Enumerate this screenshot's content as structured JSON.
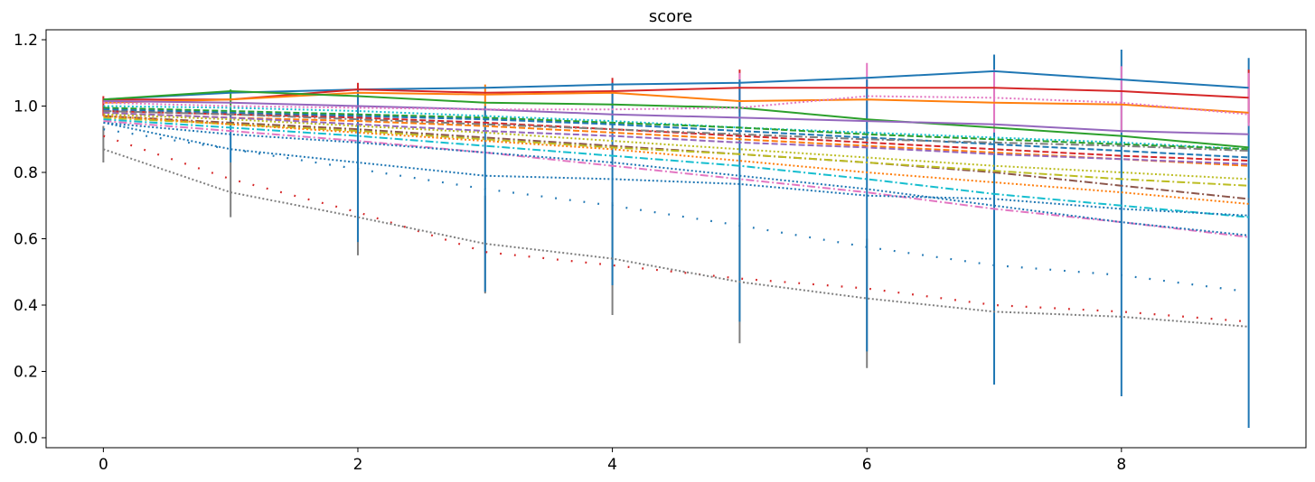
{
  "chart_data": {
    "type": "line",
    "title": "score",
    "xlabel": "",
    "ylabel": "",
    "xlim": [
      -0.45,
      9.45
    ],
    "ylim": [
      -0.03,
      1.23
    ],
    "xticks": [
      0,
      2,
      4,
      6,
      8
    ],
    "yticks": [
      0.0,
      0.2,
      0.4,
      0.6,
      0.8,
      1.0,
      1.2
    ],
    "grid": false,
    "x": [
      0,
      1,
      2,
      3,
      4,
      5,
      6,
      7,
      8,
      9
    ],
    "series": [
      {
        "color": "#1f77b4",
        "style": "solid",
        "values": [
          1.02,
          1.04,
          1.05,
          1.055,
          1.065,
          1.07,
          1.085,
          1.105,
          1.08,
          1.055
        ]
      },
      {
        "color": "#d62728",
        "style": "solid",
        "values": [
          1.02,
          1.02,
          1.05,
          1.04,
          1.045,
          1.055,
          1.055,
          1.055,
          1.045,
          1.025
        ]
      },
      {
        "color": "#ff7f0e",
        "style": "solid",
        "values": [
          1.01,
          1.02,
          1.04,
          1.035,
          1.04,
          1.015,
          1.02,
          1.01,
          1.005,
          0.98
        ]
      },
      {
        "color": "#2ca02c",
        "style": "solid",
        "values": [
          1.02,
          1.045,
          1.03,
          1.01,
          1.005,
          0.995,
          0.96,
          0.935,
          0.91,
          0.875
        ]
      },
      {
        "color": "#9467bd",
        "style": "solid",
        "values": [
          1.015,
          1.01,
          1.0,
          0.99,
          0.975,
          0.965,
          0.955,
          0.945,
          0.925,
          0.915
        ]
      },
      {
        "color": "#e377c2",
        "style": "dotted",
        "values": [
          1.01,
          1.0,
          0.995,
          0.99,
          0.99,
          0.995,
          1.03,
          1.025,
          1.01,
          0.975
        ]
      },
      {
        "color": "#17becf",
        "style": "dotted",
        "values": [
          1.0,
          0.995,
          0.985,
          0.97,
          0.955,
          0.935,
          0.92,
          0.905,
          0.89,
          0.87
        ]
      },
      {
        "color": "#2ca02c",
        "style": "dashed",
        "values": [
          0.995,
          0.985,
          0.975,
          0.965,
          0.95,
          0.935,
          0.915,
          0.9,
          0.885,
          0.87
        ]
      },
      {
        "color": "#1f77b4",
        "style": "dashed",
        "values": [
          0.99,
          0.98,
          0.97,
          0.96,
          0.945,
          0.925,
          0.905,
          0.885,
          0.865,
          0.845
        ]
      },
      {
        "color": "#d62728",
        "style": "dashed",
        "values": [
          0.985,
          0.975,
          0.965,
          0.95,
          0.93,
          0.91,
          0.89,
          0.87,
          0.85,
          0.835
        ]
      },
      {
        "color": "#ff7f0e",
        "style": "dashed",
        "values": [
          0.98,
          0.965,
          0.955,
          0.94,
          0.92,
          0.9,
          0.88,
          0.86,
          0.84,
          0.82
        ]
      },
      {
        "color": "#7f7f7f",
        "style": "dashdot",
        "values": [
          0.985,
          0.975,
          0.96,
          0.945,
          0.93,
          0.915,
          0.9,
          0.89,
          0.88,
          0.865
        ]
      },
      {
        "color": "#9467bd",
        "style": "dashed",
        "values": [
          0.98,
          0.965,
          0.945,
          0.925,
          0.91,
          0.89,
          0.875,
          0.855,
          0.84,
          0.825
        ]
      },
      {
        "color": "#bcbd22",
        "style": "dotted",
        "values": [
          0.975,
          0.96,
          0.94,
          0.92,
          0.895,
          0.87,
          0.845,
          0.82,
          0.8,
          0.78
        ]
      },
      {
        "color": "#8c564b",
        "style": "dashdot",
        "values": [
          0.97,
          0.95,
          0.93,
          0.905,
          0.88,
          0.855,
          0.83,
          0.8,
          0.76,
          0.72
        ]
      },
      {
        "color": "#bcbd22",
        "style": "dashdot",
        "values": [
          0.965,
          0.945,
          0.925,
          0.9,
          0.875,
          0.855,
          0.83,
          0.805,
          0.78,
          0.76
        ]
      },
      {
        "color": "#ff7f0e",
        "style": "dotted",
        "values": [
          0.97,
          0.945,
          0.92,
          0.895,
          0.87,
          0.835,
          0.8,
          0.77,
          0.74,
          0.705
        ]
      },
      {
        "color": "#17becf",
        "style": "dashdot",
        "values": [
          0.96,
          0.935,
          0.91,
          0.88,
          0.85,
          0.82,
          0.78,
          0.735,
          0.7,
          0.665
        ]
      },
      {
        "color": "#e377c2",
        "style": "dashdot",
        "values": [
          0.955,
          0.925,
          0.895,
          0.86,
          0.82,
          0.78,
          0.74,
          0.69,
          0.65,
          0.605
        ]
      },
      {
        "color": "#1f77b4",
        "style": "dotted",
        "values": [
          0.95,
          0.915,
          0.89,
          0.86,
          0.83,
          0.79,
          0.75,
          0.7,
          0.65,
          0.61
        ]
      },
      {
        "color": "#1f77b4",
        "style": "dotted",
        "values": [
          0.95,
          0.87,
          0.83,
          0.79,
          0.78,
          0.765,
          0.73,
          0.72,
          0.69,
          0.67
        ]
      },
      {
        "color": "#1f77b4",
        "style": "sparse",
        "values": [
          0.93,
          0.87,
          0.81,
          0.75,
          0.7,
          0.64,
          0.575,
          0.52,
          0.49,
          0.44
        ]
      },
      {
        "color": "#d62728",
        "style": "sparse",
        "values": [
          0.91,
          0.78,
          0.68,
          0.56,
          0.52,
          0.48,
          0.45,
          0.4,
          0.38,
          0.35
        ]
      },
      {
        "color": "#7f7f7f",
        "style": "dotted",
        "values": [
          0.87,
          0.74,
          0.665,
          0.585,
          0.54,
          0.47,
          0.42,
          0.38,
          0.365,
          0.335
        ]
      }
    ],
    "error_bars": [
      {
        "color": "#7f7f7f",
        "x": 0,
        "low": 0.83,
        "high": 0.94
      },
      {
        "color": "#d62728",
        "x": 0,
        "low": 0.97,
        "high": 1.03
      },
      {
        "color": "#7f7f7f",
        "x": 1,
        "low": 0.665,
        "high": 0.83
      },
      {
        "color": "#2ca02c",
        "x": 1,
        "low": 0.95,
        "high": 1.05
      },
      {
        "color": "#1f77b4",
        "x": 1,
        "low": 0.83,
        "high": 0.99
      },
      {
        "color": "#7f7f7f",
        "x": 2,
        "low": 0.55,
        "high": 0.81
      },
      {
        "color": "#d62728",
        "x": 2,
        "low": 0.96,
        "high": 1.07
      },
      {
        "color": "#1f77b4",
        "x": 2,
        "low": 0.59,
        "high": 1.05
      },
      {
        "color": "#7f7f7f",
        "x": 3,
        "low": 0.435,
        "high": 0.73
      },
      {
        "color": "#ff7f0e",
        "x": 3,
        "low": 0.93,
        "high": 1.065
      },
      {
        "color": "#1f77b4",
        "x": 3,
        "low": 0.44,
        "high": 1.0
      },
      {
        "color": "#7f7f7f",
        "x": 4,
        "low": 0.37,
        "high": 0.71
      },
      {
        "color": "#d62728",
        "x": 4,
        "low": 0.97,
        "high": 1.085
      },
      {
        "color": "#1f77b4",
        "x": 4,
        "low": 0.46,
        "high": 1.07
      },
      {
        "color": "#7f7f7f",
        "x": 5,
        "low": 0.285,
        "high": 0.65
      },
      {
        "color": "#d62728",
        "x": 5,
        "low": 0.98,
        "high": 1.11
      },
      {
        "color": "#e377c2",
        "x": 5,
        "low": 0.97,
        "high": 1.1
      },
      {
        "color": "#1f77b4",
        "x": 5,
        "low": 0.35,
        "high": 1.08
      },
      {
        "color": "#7f7f7f",
        "x": 6,
        "low": 0.21,
        "high": 0.6
      },
      {
        "color": "#e377c2",
        "x": 6,
        "low": 0.93,
        "high": 1.13
      },
      {
        "color": "#1f77b4",
        "x": 6,
        "low": 0.26,
        "high": 1.08
      },
      {
        "color": "#1f77b4",
        "x": 7,
        "low": 0.16,
        "high": 1.155
      },
      {
        "color": "#e377c2",
        "x": 7,
        "low": 0.92,
        "high": 1.11
      },
      {
        "color": "#1f77b4",
        "x": 8,
        "low": 0.125,
        "high": 1.17
      },
      {
        "color": "#e377c2",
        "x": 8,
        "low": 0.92,
        "high": 1.12
      },
      {
        "color": "#1f77b4",
        "x": 9,
        "low": 0.03,
        "high": 1.145
      },
      {
        "color": "#d62728",
        "x": 9,
        "low": 0.95,
        "high": 1.11
      },
      {
        "color": "#e377c2",
        "x": 9,
        "low": 0.94,
        "high": 1.1
      }
    ]
  }
}
